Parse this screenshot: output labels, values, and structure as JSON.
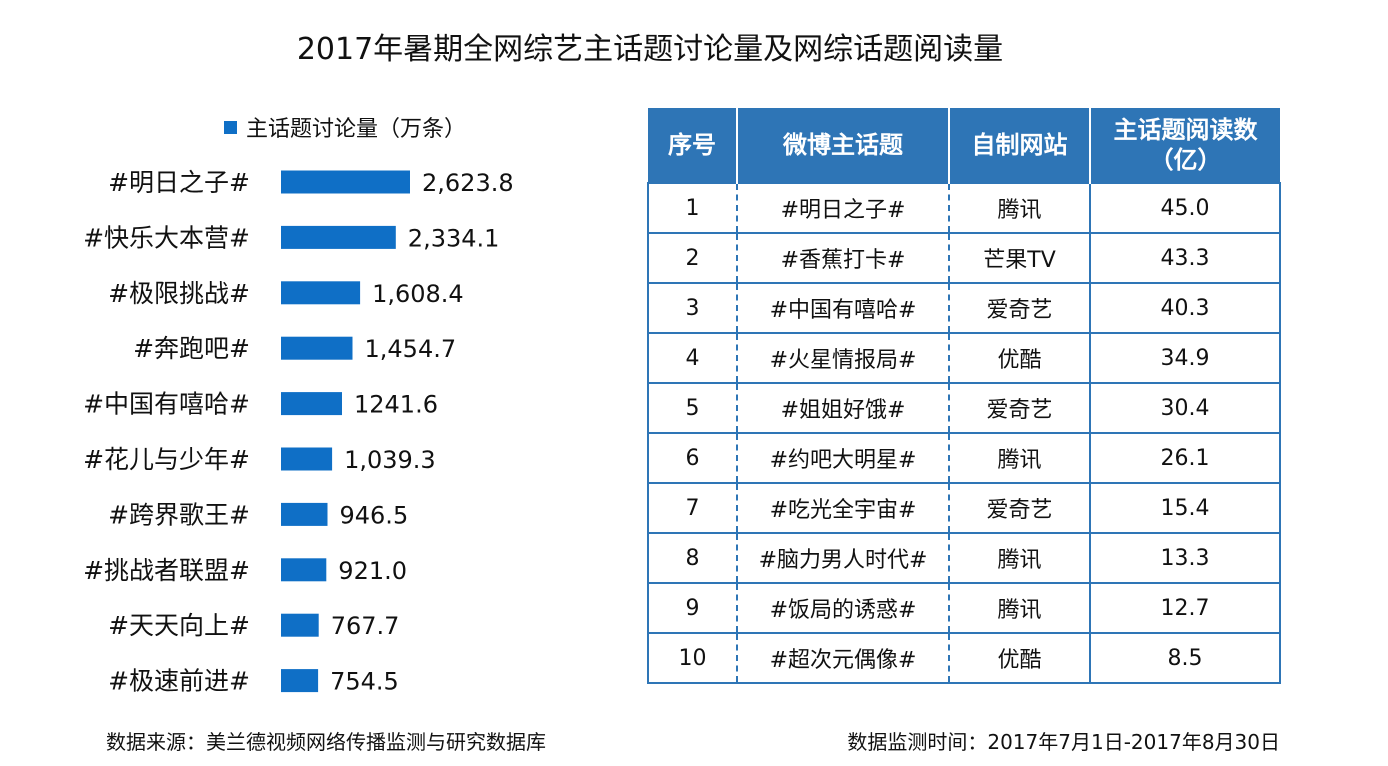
{
  "title": "2017年暑期全网综艺主话题讨论量及网综话题阅读量",
  "chart_data": {
    "type": "bar",
    "orientation": "horizontal",
    "legend": {
      "label": "主话题讨论量（万条）",
      "position": "top"
    },
    "categories": [
      "#明日之子#",
      "#快乐大本营#",
      "#极限挑战#",
      "#奔跑吧#",
      "#中国有嘻哈#",
      "#花儿与少年#",
      "#跨界歌王#",
      "#挑战者联盟#",
      "#天天向上#",
      "#极速前进#"
    ],
    "series": [
      {
        "name": "主话题讨论量（万条）",
        "values": [
          2623.8,
          2334.1,
          1608.4,
          1454.7,
          1241.6,
          1039.3,
          946.5,
          921.0,
          767.7,
          754.5
        ],
        "labels": [
          "2,623.8",
          "2,334.1",
          "1,608.4",
          "1,454.7",
          "1241.6",
          "1,039.3",
          "946.5",
          "921.0",
          "767.7",
          "754.5"
        ]
      }
    ],
    "xlim": [
      0,
      2623.8
    ],
    "grid": false,
    "color": "#0f6fc6"
  },
  "table": {
    "headers": [
      "序号",
      "微博主话题",
      "自制网站",
      "主话题阅读数（亿）"
    ],
    "header_line1": "主话题阅读数",
    "header_line2": "（亿）",
    "rows": [
      [
        "1",
        "#明日之子#",
        "腾讯",
        "45.0"
      ],
      [
        "2",
        "#香蕉打卡#",
        "芒果TV",
        "43.3"
      ],
      [
        "3",
        "#中国有嘻哈#",
        "爱奇艺",
        "40.3"
      ],
      [
        "4",
        "#火星情报局#",
        "优酷",
        "34.9"
      ],
      [
        "5",
        "#姐姐好饿#",
        "爱奇艺",
        "30.4"
      ],
      [
        "6",
        "#约吧大明星#",
        "腾讯",
        "26.1"
      ],
      [
        "7",
        "#吃光全宇宙#",
        "爱奇艺",
        "15.4"
      ],
      [
        "8",
        "#脑力男人时代#",
        "腾讯",
        "13.3"
      ],
      [
        "9",
        "#饭局的诱惑#",
        "腾讯",
        "12.7"
      ],
      [
        "10",
        "#超次元偶像#",
        "优酷",
        "8.5"
      ]
    ],
    "header_color": "#2e75b6"
  },
  "footer": {
    "source": "数据来源：美兰德视频网络传播监测与研究数据库",
    "period": "数据监测时间：2017年7月1日-2017年8月30日"
  }
}
